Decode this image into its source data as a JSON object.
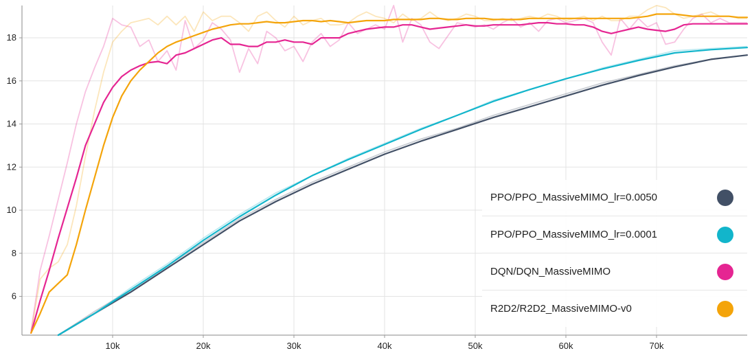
{
  "chart_data": {
    "type": "line",
    "title": "",
    "xlabel": "",
    "ylabel": "",
    "xlim": [
      0,
      80000
    ],
    "ylim": [
      4.2,
      19.5
    ],
    "x_ticks": [
      10000,
      20000,
      30000,
      40000,
      50000,
      60000,
      70000
    ],
    "x_tick_labels": [
      "10k",
      "20k",
      "30k",
      "40k",
      "50k",
      "60k",
      "70k"
    ],
    "y_ticks": [
      6,
      8,
      10,
      12,
      14,
      16,
      18
    ],
    "y_tick_labels": [
      "6",
      "8",
      "10",
      "12",
      "14",
      "16",
      "18"
    ],
    "grid": true,
    "legend_position": "bottom-right",
    "series": [
      {
        "name": "PPO/PPO_MassiveMIMO_lr=0.0050",
        "color": "#425066",
        "x": [
          4000,
          8000,
          12000,
          16000,
          20000,
          24000,
          28000,
          32000,
          36000,
          40000,
          44000,
          48000,
          52000,
          56000,
          60000,
          64000,
          68000,
          72000,
          76000,
          80000
        ],
        "values": [
          4.2,
          5.2,
          6.2,
          7.3,
          8.4,
          9.5,
          10.4,
          11.2,
          11.9,
          12.6,
          13.2,
          13.75,
          14.3,
          14.8,
          15.3,
          15.8,
          16.25,
          16.65,
          17.0,
          17.2
        ],
        "raw_values": [
          4.2,
          5.3,
          6.3,
          7.4,
          8.5,
          9.6,
          10.5,
          11.3,
          12.0,
          12.7,
          13.3,
          13.8,
          14.4,
          14.9,
          15.4,
          15.9,
          16.3,
          16.7,
          17.0,
          17.2
        ]
      },
      {
        "name": "PPO/PPO_MassiveMIMO_lr=0.0001",
        "color": "#12b5cb",
        "x": [
          4000,
          8000,
          12000,
          16000,
          20000,
          24000,
          28000,
          32000,
          36000,
          40000,
          44000,
          48000,
          52000,
          56000,
          60000,
          64000,
          68000,
          72000,
          76000,
          80000
        ],
        "values": [
          4.2,
          5.2,
          6.3,
          7.4,
          8.6,
          9.7,
          10.7,
          11.6,
          12.35,
          13.05,
          13.75,
          14.4,
          15.05,
          15.6,
          16.1,
          16.55,
          16.95,
          17.3,
          17.45,
          17.55
        ],
        "raw_values": [
          4.2,
          5.2,
          6.4,
          7.5,
          8.7,
          9.8,
          10.8,
          11.6,
          12.4,
          13.1,
          13.8,
          14.4,
          15.1,
          15.6,
          16.1,
          16.6,
          17.0,
          17.4,
          17.5,
          17.6
        ]
      },
      {
        "name": "DQN/DQN_MassiveMIMO",
        "color": "#e52592",
        "x": [
          1000,
          2000,
          3000,
          4000,
          5000,
          6000,
          7000,
          8000,
          9000,
          10000,
          11000,
          12000,
          13000,
          14000,
          15000,
          16000,
          17000,
          18000,
          19000,
          20000,
          21000,
          22000,
          23000,
          24000,
          25000,
          26000,
          27000,
          28000,
          29000,
          30000,
          31000,
          32000,
          33000,
          34000,
          35000,
          36000,
          37000,
          38000,
          39000,
          40000,
          41000,
          42000,
          43000,
          44000,
          45000,
          46000,
          47000,
          48000,
          49000,
          50000,
          51000,
          52000,
          53000,
          54000,
          55000,
          56000,
          57000,
          58000,
          59000,
          60000,
          61000,
          62000,
          63000,
          64000,
          65000,
          66000,
          67000,
          68000,
          69000,
          70000,
          71000,
          72000,
          73000,
          74000,
          75000,
          76000,
          77000,
          78000,
          79000,
          80000
        ],
        "values": [
          4.3,
          5.8,
          7.2,
          8.7,
          10.1,
          11.5,
          13.0,
          14.0,
          15.0,
          15.7,
          16.2,
          16.5,
          16.7,
          16.85,
          16.9,
          16.8,
          17.2,
          17.3,
          17.5,
          17.7,
          17.9,
          18.0,
          17.7,
          17.7,
          17.6,
          17.6,
          17.8,
          17.8,
          17.9,
          17.8,
          17.8,
          17.7,
          18.0,
          18.0,
          18.0,
          18.2,
          18.3,
          18.4,
          18.45,
          18.5,
          18.5,
          18.6,
          18.6,
          18.5,
          18.4,
          18.45,
          18.5,
          18.55,
          18.6,
          18.55,
          18.55,
          18.6,
          18.6,
          18.6,
          18.6,
          18.65,
          18.7,
          18.7,
          18.65,
          18.65,
          18.6,
          18.6,
          18.5,
          18.3,
          18.2,
          18.3,
          18.4,
          18.5,
          18.4,
          18.35,
          18.3,
          18.4,
          18.6,
          18.65,
          18.65,
          18.65,
          18.65,
          18.65,
          18.65,
          18.65
        ],
        "raw_values": [
          4.4,
          7.2,
          8.8,
          10.5,
          12.2,
          14.0,
          15.5,
          16.6,
          17.6,
          18.9,
          18.6,
          18.5,
          17.6,
          17.9,
          16.9,
          17.4,
          16.5,
          18.8,
          17.5,
          17.9,
          18.7,
          18.4,
          17.9,
          16.4,
          17.5,
          16.8,
          18.3,
          18.0,
          17.4,
          17.6,
          16.9,
          17.8,
          18.2,
          17.6,
          17.9,
          18.7,
          18.2,
          18.4,
          18.6,
          18.4,
          19.5,
          17.8,
          18.9,
          18.6,
          17.8,
          17.5,
          18.1,
          18.7,
          18.6,
          18.5,
          18.6,
          18.4,
          18.7,
          18.9,
          18.5,
          18.7,
          18.3,
          18.8,
          18.9,
          18.7,
          18.8,
          18.9,
          18.7,
          17.8,
          17.2,
          18.9,
          18.4,
          18.9,
          18.5,
          18.7,
          17.7,
          17.8,
          18.4,
          18.9,
          19.1,
          18.7,
          18.9,
          18.7,
          18.7,
          18.7
        ]
      },
      {
        "name": "R2D2/R2D2_MassiveMIMO-v0",
        "color": "#f4a40a",
        "x": [
          1000,
          2000,
          3000,
          4000,
          5000,
          6000,
          7000,
          8000,
          9000,
          10000,
          11000,
          12000,
          13000,
          14000,
          15000,
          16000,
          17000,
          18000,
          19000,
          20000,
          21000,
          22000,
          23000,
          24000,
          25000,
          26000,
          27000,
          28000,
          29000,
          30000,
          31000,
          32000,
          33000,
          34000,
          35000,
          36000,
          37000,
          38000,
          39000,
          40000,
          41000,
          42000,
          43000,
          44000,
          45000,
          46000,
          47000,
          48000,
          49000,
          50000,
          51000,
          52000,
          53000,
          54000,
          55000,
          56000,
          57000,
          58000,
          59000,
          60000,
          61000,
          62000,
          63000,
          64000,
          65000,
          66000,
          67000,
          68000,
          69000,
          70000,
          71000,
          72000,
          73000,
          74000,
          75000,
          76000,
          77000,
          78000,
          79000,
          80000
        ],
        "values": [
          4.3,
          5.2,
          6.2,
          6.6,
          7.0,
          8.4,
          10.0,
          11.5,
          13.0,
          14.3,
          15.3,
          16.0,
          16.5,
          16.9,
          17.3,
          17.6,
          17.8,
          17.95,
          18.1,
          18.25,
          18.4,
          18.5,
          18.6,
          18.65,
          18.65,
          18.7,
          18.75,
          18.7,
          18.7,
          18.75,
          18.8,
          18.8,
          18.75,
          18.8,
          18.75,
          18.7,
          18.75,
          18.8,
          18.8,
          18.8,
          18.85,
          18.85,
          18.85,
          18.85,
          18.9,
          18.9,
          18.85,
          18.85,
          18.9,
          18.9,
          18.9,
          18.85,
          18.85,
          18.85,
          18.85,
          18.9,
          18.9,
          18.9,
          18.9,
          18.9,
          18.9,
          18.9,
          18.9,
          18.9,
          18.9,
          18.9,
          18.9,
          18.95,
          19.0,
          19.1,
          19.1,
          19.1,
          19.05,
          19.0,
          19.0,
          19.0,
          19.0,
          19.0,
          18.95,
          18.95
        ],
        "raw_values": [
          4.3,
          6.8,
          7.3,
          7.6,
          8.4,
          10.2,
          12.5,
          14.6,
          16.4,
          17.8,
          18.3,
          18.7,
          18.8,
          18.9,
          18.6,
          19.0,
          18.6,
          19.0,
          18.3,
          19.2,
          18.8,
          19.0,
          19.0,
          18.7,
          18.3,
          19.0,
          19.2,
          18.8,
          18.5,
          19.0,
          18.6,
          18.8,
          18.9,
          18.6,
          18.6,
          18.7,
          19.0,
          19.2,
          19.0,
          18.9,
          18.7,
          19.1,
          18.8,
          18.9,
          19.2,
          18.9,
          18.8,
          18.9,
          19.1,
          19.0,
          18.8,
          18.8,
          18.9,
          18.8,
          18.9,
          19.0,
          18.9,
          19.1,
          19.0,
          18.8,
          18.9,
          19.0,
          18.8,
          19.0,
          18.8,
          18.8,
          19.0,
          19.0,
          19.3,
          19.5,
          19.4,
          19.1,
          18.9,
          19.0,
          19.1,
          19.2,
          19.0,
          19.0,
          18.9,
          18.9
        ]
      }
    ]
  }
}
